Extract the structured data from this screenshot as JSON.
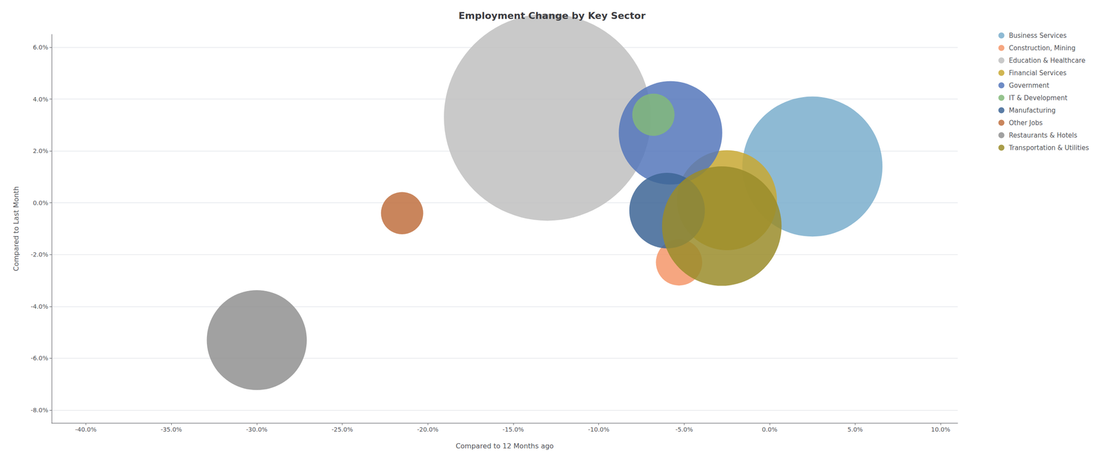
{
  "chart_data": {
    "type": "scatter",
    "title": "Employment Change by Key Sector",
    "xlabel": "Compared to 12 Months ago",
    "ylabel": "Compared to Last Month",
    "xlim": [
      -0.42,
      0.11
    ],
    "ylim": [
      -0.085,
      0.065
    ],
    "xticks": [
      {
        "value": -0.4,
        "label": "-40.0%"
      },
      {
        "value": -0.35,
        "label": "-35.0%"
      },
      {
        "value": -0.3,
        "label": "-30.0%"
      },
      {
        "value": -0.25,
        "label": "-25.0%"
      },
      {
        "value": -0.2,
        "label": "-20.0%"
      },
      {
        "value": -0.15,
        "label": "-15.0%"
      },
      {
        "value": -0.1,
        "label": "-10.0%"
      },
      {
        "value": -0.05,
        "label": "-5.0%"
      },
      {
        "value": 0.0,
        "label": "0.0%"
      },
      {
        "value": 0.05,
        "label": "5.0%"
      },
      {
        "value": 0.1,
        "label": "10.0%"
      }
    ],
    "yticks": [
      {
        "value": -0.08,
        "label": "-8.0%"
      },
      {
        "value": -0.06,
        "label": "-6.0%"
      },
      {
        "value": -0.04,
        "label": "-4.0%"
      },
      {
        "value": -0.02,
        "label": "-2.0%"
      },
      {
        "value": 0.0,
        "label": "0.0%"
      },
      {
        "value": 0.02,
        "label": "2.0%"
      },
      {
        "value": 0.04,
        "label": "4.0%"
      },
      {
        "value": 0.06,
        "label": "6.0%"
      }
    ],
    "grid": "y",
    "legend": "upper right",
    "series": [
      {
        "name": "Business Services",
        "color": "#7aaecc",
        "x": [
          0.025
        ],
        "y": [
          0.014
        ],
        "size": [
          55000
        ]
      },
      {
        "name": "Construction, Mining",
        "color": "#f4966a",
        "x": [
          -0.053
        ],
        "y": [
          -0.023
        ],
        "size": [
          6000
        ]
      },
      {
        "name": "Education & Healthcare",
        "color": "#c0c0c0",
        "x": [
          -0.13
        ],
        "y": [
          0.033
        ],
        "size": [
          120000
        ]
      },
      {
        "name": "Financial Services",
        "color": "#c8a832",
        "x": [
          -0.025
        ],
        "y": [
          0.001
        ],
        "size": [
          28000
        ]
      },
      {
        "name": "Government",
        "color": "#5577bb",
        "x": [
          -0.058
        ],
        "y": [
          0.027
        ],
        "size": [
          30000
        ]
      },
      {
        "name": "IT & Development",
        "color": "#82b87a",
        "x": [
          -0.068
        ],
        "y": [
          0.034
        ],
        "size": [
          5000
        ]
      },
      {
        "name": "Manufacturing",
        "color": "#3d6595",
        "x": [
          -0.06
        ],
        "y": [
          -0.003
        ],
        "size": [
          16000
        ]
      },
      {
        "name": "Other Jobs",
        "color": "#c07040",
        "x": [
          -0.215
        ],
        "y": [
          -0.004
        ],
        "size": [
          5000
        ]
      },
      {
        "name": "Restaurants & Hotels",
        "color": "#909090",
        "x": [
          -0.3
        ],
        "y": [
          -0.053
        ],
        "size": [
          28000
        ]
      },
      {
        "name": "Transportation & Utilities",
        "color": "#9a8c2a",
        "x": [
          -0.028
        ],
        "y": [
          -0.009
        ],
        "size": [
          40000
        ]
      }
    ]
  }
}
